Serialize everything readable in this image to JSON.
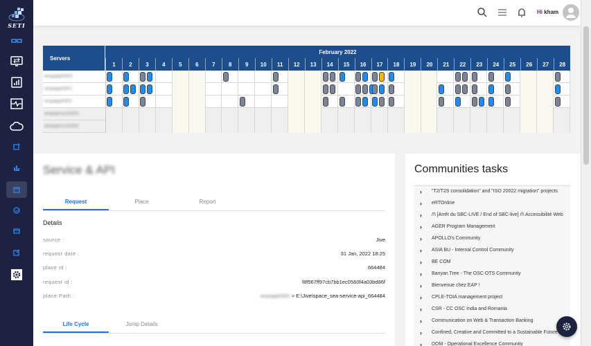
{
  "brand": {
    "name": "SETI"
  },
  "header": {
    "greeting_prefix": "Hi",
    "username": "kham"
  },
  "colors": {
    "sidebar": "#1d2240",
    "table_header": "#1d4d8c",
    "event_blue": "#1e8cf0",
    "event_grey": "#7a8698",
    "event_yellow": "#f5b800",
    "accent": "#1a73e8"
  },
  "sidebar": {
    "items": [
      {
        "icon": "dashboard-icon"
      },
      {
        "icon": "monitor-transfer-icon"
      },
      {
        "icon": "bar-report-icon"
      },
      {
        "icon": "pulse-icon"
      },
      {
        "icon": "cloud-icon"
      },
      {
        "icon": "image-add-icon"
      },
      {
        "icon": "bar-chart-icon"
      },
      {
        "icon": "calendar-icon",
        "active": true
      },
      {
        "icon": "check-circle-icon"
      },
      {
        "icon": "window-icon"
      },
      {
        "icon": "edit-icon"
      },
      {
        "icon": "settings-icon"
      }
    ]
  },
  "timeline": {
    "servers_label": "Servers",
    "month": "February 2022",
    "days": [
      "1",
      "2",
      "3",
      "4",
      "5",
      "6",
      "7",
      "8",
      "9",
      "10",
      "11",
      "12",
      "13",
      "14",
      "15",
      "16",
      "17",
      "18",
      "19",
      "20",
      "21",
      "22",
      "23",
      "24",
      "25",
      "26",
      "27",
      "28"
    ],
    "weekends": [
      5,
      6,
      12,
      13,
      19,
      20,
      26,
      27
    ],
    "rows": [
      {
        "server": "wnpapp0303",
        "events": [
          [
            1,
            "blue"
          ],
          [
            2,
            "blue"
          ],
          [
            3,
            "grey"
          ],
          [
            3,
            "blue"
          ],
          [
            8,
            "grey"
          ],
          [
            11,
            "grey"
          ],
          [
            14,
            "grey"
          ],
          [
            14,
            "grey"
          ],
          [
            15,
            "blue"
          ],
          [
            16,
            "grey"
          ],
          [
            16,
            "blue"
          ],
          [
            17,
            "grey"
          ],
          [
            17,
            "yellow"
          ],
          [
            18,
            "blue"
          ],
          [
            22,
            "grey"
          ],
          [
            22,
            "grey"
          ],
          [
            23,
            "grey"
          ],
          [
            24,
            "grey"
          ],
          [
            25,
            "blue"
          ],
          [
            28,
            "grey"
          ]
        ]
      },
      {
        "server": "wnpapp0301",
        "events": [
          [
            1,
            "blue"
          ],
          [
            2,
            "blue"
          ],
          [
            2,
            "blue"
          ],
          [
            3,
            "blue"
          ],
          [
            3,
            "blue"
          ],
          [
            11,
            "grey"
          ],
          [
            14,
            "grey"
          ],
          [
            14,
            "grey"
          ],
          [
            16,
            "grey"
          ],
          [
            16,
            "grey"
          ],
          [
            16,
            "blue"
          ],
          [
            17,
            "grey"
          ],
          [
            17,
            "blue"
          ],
          [
            18,
            "grey"
          ],
          [
            21,
            "blue"
          ],
          [
            22,
            "grey"
          ],
          [
            22,
            "grey"
          ],
          [
            23,
            "grey"
          ],
          [
            24,
            "blue"
          ],
          [
            25,
            "grey"
          ],
          [
            28,
            "blue"
          ]
        ]
      },
      {
        "server": "wnpapp0302",
        "events": [
          [
            1,
            "blue"
          ],
          [
            2,
            "blue"
          ],
          [
            3,
            "grey"
          ],
          [
            9,
            "grey"
          ],
          [
            14,
            "grey"
          ],
          [
            15,
            "grey"
          ],
          [
            16,
            "grey"
          ],
          [
            16,
            "blue"
          ],
          [
            17,
            "blue"
          ],
          [
            17,
            "grey"
          ],
          [
            18,
            "grey"
          ],
          [
            21,
            "grey"
          ],
          [
            22,
            "blue"
          ],
          [
            23,
            "grey"
          ],
          [
            23,
            "blue"
          ],
          [
            24,
            "blue"
          ],
          [
            25,
            "grey"
          ],
          [
            28,
            "grey"
          ]
        ]
      },
      {
        "server": "wnpapmco0303",
        "events": []
      },
      {
        "server": "wnpapmco0304",
        "events": []
      }
    ]
  },
  "service": {
    "title": "Service & API",
    "tabs": [
      "Request",
      "Place",
      "Report"
    ],
    "details_heading": "Details",
    "fields": [
      {
        "label": "source :",
        "value": "Jive"
      },
      {
        "label": "request date :",
        "value": "31 Jan, 2022 18:25"
      },
      {
        "label": "place id :",
        "value": "664484"
      },
      {
        "label": "request id :",
        "value": "f8f567ff97cb7bb1ec0560f4a03bd86f"
      },
      {
        "label": "place Path :",
        "value_server": "wnpapp0302",
        "value": "> E:\\Jive\\space_sea-service-api_664484"
      }
    ],
    "tabs2": [
      "Life Cycle",
      "Jump Details"
    ]
  },
  "communities": {
    "title": "Communities tasks",
    "items": [
      "\"T2/T2S consolidation\" and \"ISO 20022 migration\" projects",
      "eRTOnline",
      "/!\\ [Arrêt du SBC-LIVE / End of SBC-live] /!\\ Accessibilité Web",
      "AGER Program Management",
      "APOLLO's Community",
      "ASIA BU - Internal Control Community",
      "BE COM",
      "Banyan Tree - The OSC OTS Community",
      "Bienvenue chez EAP !",
      "CPLE-TOIA management project",
      "CSR - CC OSC India and Romania",
      "Communication on Web & Transaction Banking",
      "Confined, Creative and Committed to a Sustainable Future",
      "DOM - Operational Excellence Community"
    ]
  }
}
